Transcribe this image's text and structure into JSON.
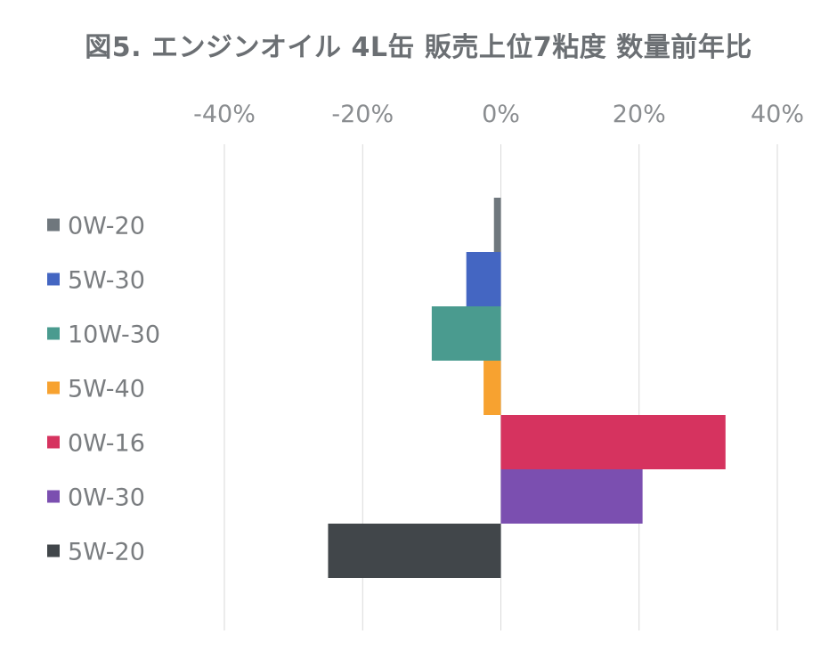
{
  "chart_data": {
    "type": "bar",
    "orientation": "horizontal",
    "title": "図5. エンジンオイル 4L缶 販売上位7粘度 数量前年比",
    "xlabel": "",
    "ylabel": "",
    "xlim": [
      -0.4,
      0.4
    ],
    "x_ticks": [
      -0.4,
      -0.2,
      0,
      0.2,
      0.4
    ],
    "x_tick_labels": [
      "-40%",
      "-20%",
      "0%",
      "20%",
      "40%"
    ],
    "x_axis_position": "top",
    "grid": "vertical",
    "legend": "left",
    "categories": [
      "0W-20",
      "5W-30",
      "10W-30",
      "5W-40",
      "0W-16",
      "0W-30",
      "5W-20"
    ],
    "values": [
      -0.01,
      -0.05,
      -0.1,
      -0.025,
      0.325,
      0.205,
      -0.25
    ],
    "colors": [
      "#6f777d",
      "#4466c2",
      "#4a9b8f",
      "#f7a230",
      "#d6335f",
      "#7b4fb0",
      "#41464a"
    ]
  }
}
